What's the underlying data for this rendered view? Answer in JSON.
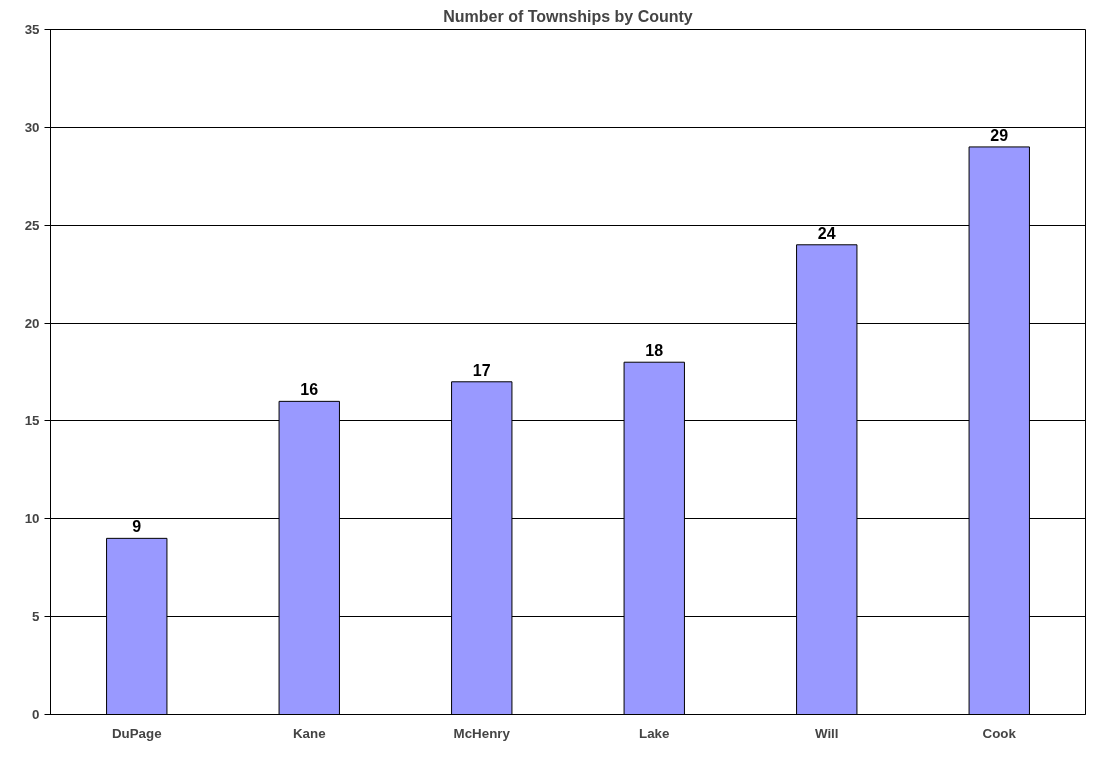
{
  "chart_data": {
    "type": "bar",
    "title": "Number of Townships by County",
    "categories": [
      "DuPage",
      "Kane",
      "McHenry",
      "Lake",
      "Will",
      "Cook"
    ],
    "values": [
      9,
      16,
      17,
      18,
      24,
      29
    ],
    "color": "#9999ff",
    "ylim": [
      0,
      35
    ],
    "yticks": [
      0,
      5,
      10,
      15,
      20,
      25,
      30,
      35
    ],
    "grid": "y",
    "data_labels": true
  }
}
